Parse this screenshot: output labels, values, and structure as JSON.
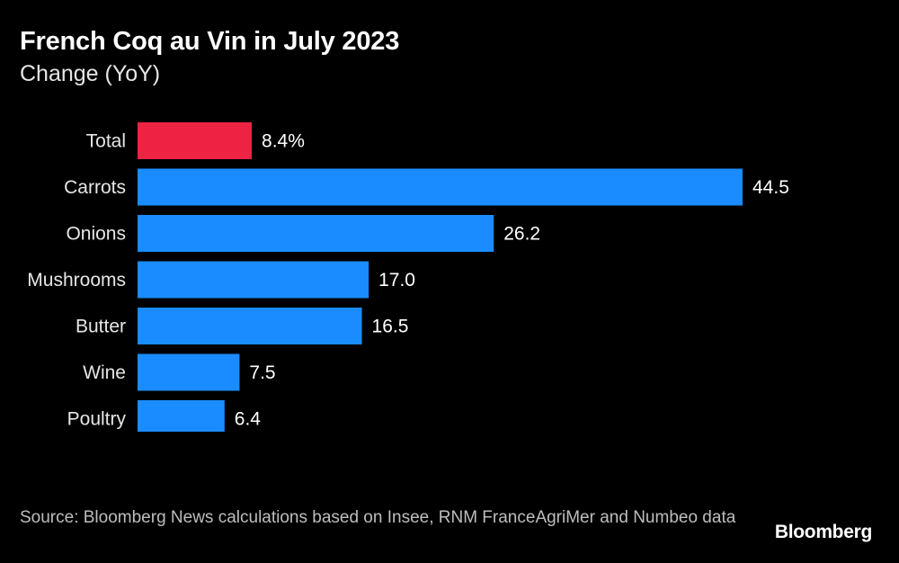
{
  "header": {
    "title": "French Coq au Vin in July 2023",
    "subtitle": "Change (YoY)"
  },
  "footer": {
    "source": "Source: Bloomberg News calculations based on Insee, RNM FranceAgriMer and Numbeo data",
    "brand": "Bloomberg"
  },
  "colors": {
    "highlight": "#ee2344",
    "bar": "#1a8cff",
    "background": "#000000",
    "text": "#ffffff"
  },
  "chart_data": {
    "type": "bar",
    "orientation": "horizontal",
    "title": "French Coq au Vin in July 2023",
    "subtitle": "Change (YoY)",
    "categories": [
      "Total",
      "Carrots",
      "Onions",
      "Mushrooms",
      "Butter",
      "Wine",
      "Poultry"
    ],
    "values": [
      8.4,
      44.5,
      26.2,
      17.0,
      16.5,
      7.5,
      6.4
    ],
    "value_labels": [
      "8.4%",
      "44.5",
      "26.2",
      "17.0",
      "16.5",
      "7.5",
      "6.4"
    ],
    "highlight_index": 0,
    "xlim": [
      0,
      44.5
    ],
    "grid": false,
    "legend": "none"
  }
}
